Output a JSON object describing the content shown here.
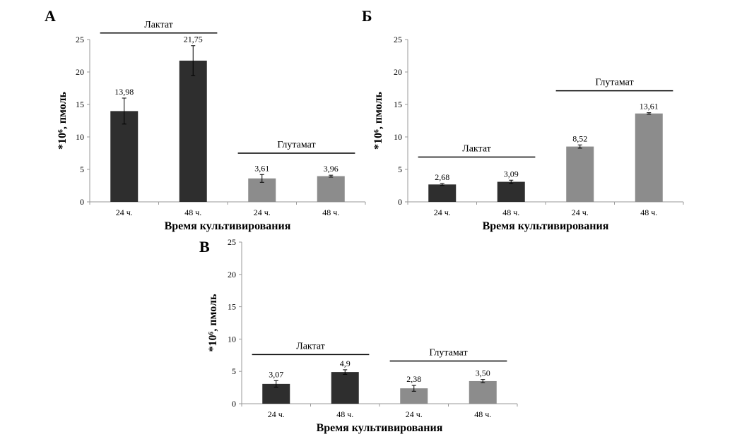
{
  "colors": {
    "lactate": "#2e2e2e",
    "glutamate": "#8c8c8c",
    "axis": "#9a9a9a",
    "ink": "#000000"
  },
  "chart_data": [
    {
      "type": "bar",
      "panel_letter": "А",
      "title": "",
      "xlabel": "Время культивирования",
      "ylabel": "*10⁶, пмоль",
      "ylim": [
        0,
        25
      ],
      "yticks": [
        "0",
        "5",
        "10",
        "15",
        "20",
        "25"
      ],
      "categories": [
        "24 ч.",
        "48 ч.",
        "24 ч.",
        "48 ч."
      ],
      "values": [
        13.98,
        21.75,
        3.61,
        3.96
      ],
      "errors": [
        2.0,
        2.3,
        0.6,
        0.15
      ],
      "value_labels": [
        "13,98",
        "21,75",
        "3,61",
        "3,96"
      ],
      "bar_groups": [
        "lactate",
        "lactate",
        "glutamate",
        "glutamate"
      ],
      "brackets": [
        {
          "label": "Лактат",
          "from": 0,
          "to": 1,
          "level": 26
        },
        {
          "label": "Глутамат",
          "from": 2,
          "to": 3,
          "level": 7.5
        }
      ],
      "grid": false
    },
    {
      "type": "bar",
      "panel_letter": "Б",
      "title": "",
      "xlabel": "Время культивирования",
      "ylabel": "*10⁶, пмоль",
      "ylim": [
        0,
        25
      ],
      "yticks": [
        "0",
        "5",
        "10",
        "15",
        "20",
        "25"
      ],
      "categories": [
        "24 ч.",
        "48 ч.",
        "24 ч.",
        "48 ч."
      ],
      "values": [
        2.68,
        3.09,
        8.52,
        13.61
      ],
      "errors": [
        0.15,
        0.25,
        0.25,
        0.12
      ],
      "value_labels": [
        "2,68",
        "3,09",
        "8,52",
        "13,61"
      ],
      "bar_groups": [
        "lactate",
        "lactate",
        "glutamate",
        "glutamate"
      ],
      "brackets": [
        {
          "label": "Лактат",
          "from": 0,
          "to": 1,
          "level": 6.9
        },
        {
          "label": "Глутамат",
          "from": 2,
          "to": 3,
          "level": 17.1
        }
      ],
      "grid": false
    },
    {
      "type": "bar",
      "panel_letter": "В",
      "title": "",
      "xlabel": "Время культивирования",
      "ylabel": "*10⁶, пмоль",
      "ylim": [
        0,
        25
      ],
      "yticks": [
        "0",
        "5",
        "10",
        "15",
        "20",
        "25"
      ],
      "categories": [
        "24 ч.",
        "48 ч.",
        "24 ч.",
        "48 ч."
      ],
      "values": [
        3.07,
        4.9,
        2.38,
        3.5
      ],
      "errors": [
        0.5,
        0.35,
        0.45,
        0.25
      ],
      "value_labels": [
        "3,07",
        "4,9",
        "2,38",
        "3,50"
      ],
      "bar_groups": [
        "lactate",
        "lactate",
        "glutamate",
        "glutamate"
      ],
      "brackets": [
        {
          "label": "Лактат",
          "from": 0,
          "to": 1,
          "level": 7.6
        },
        {
          "label": "Глутамат",
          "from": 2,
          "to": 3,
          "level": 6.6
        }
      ],
      "grid": false
    }
  ]
}
